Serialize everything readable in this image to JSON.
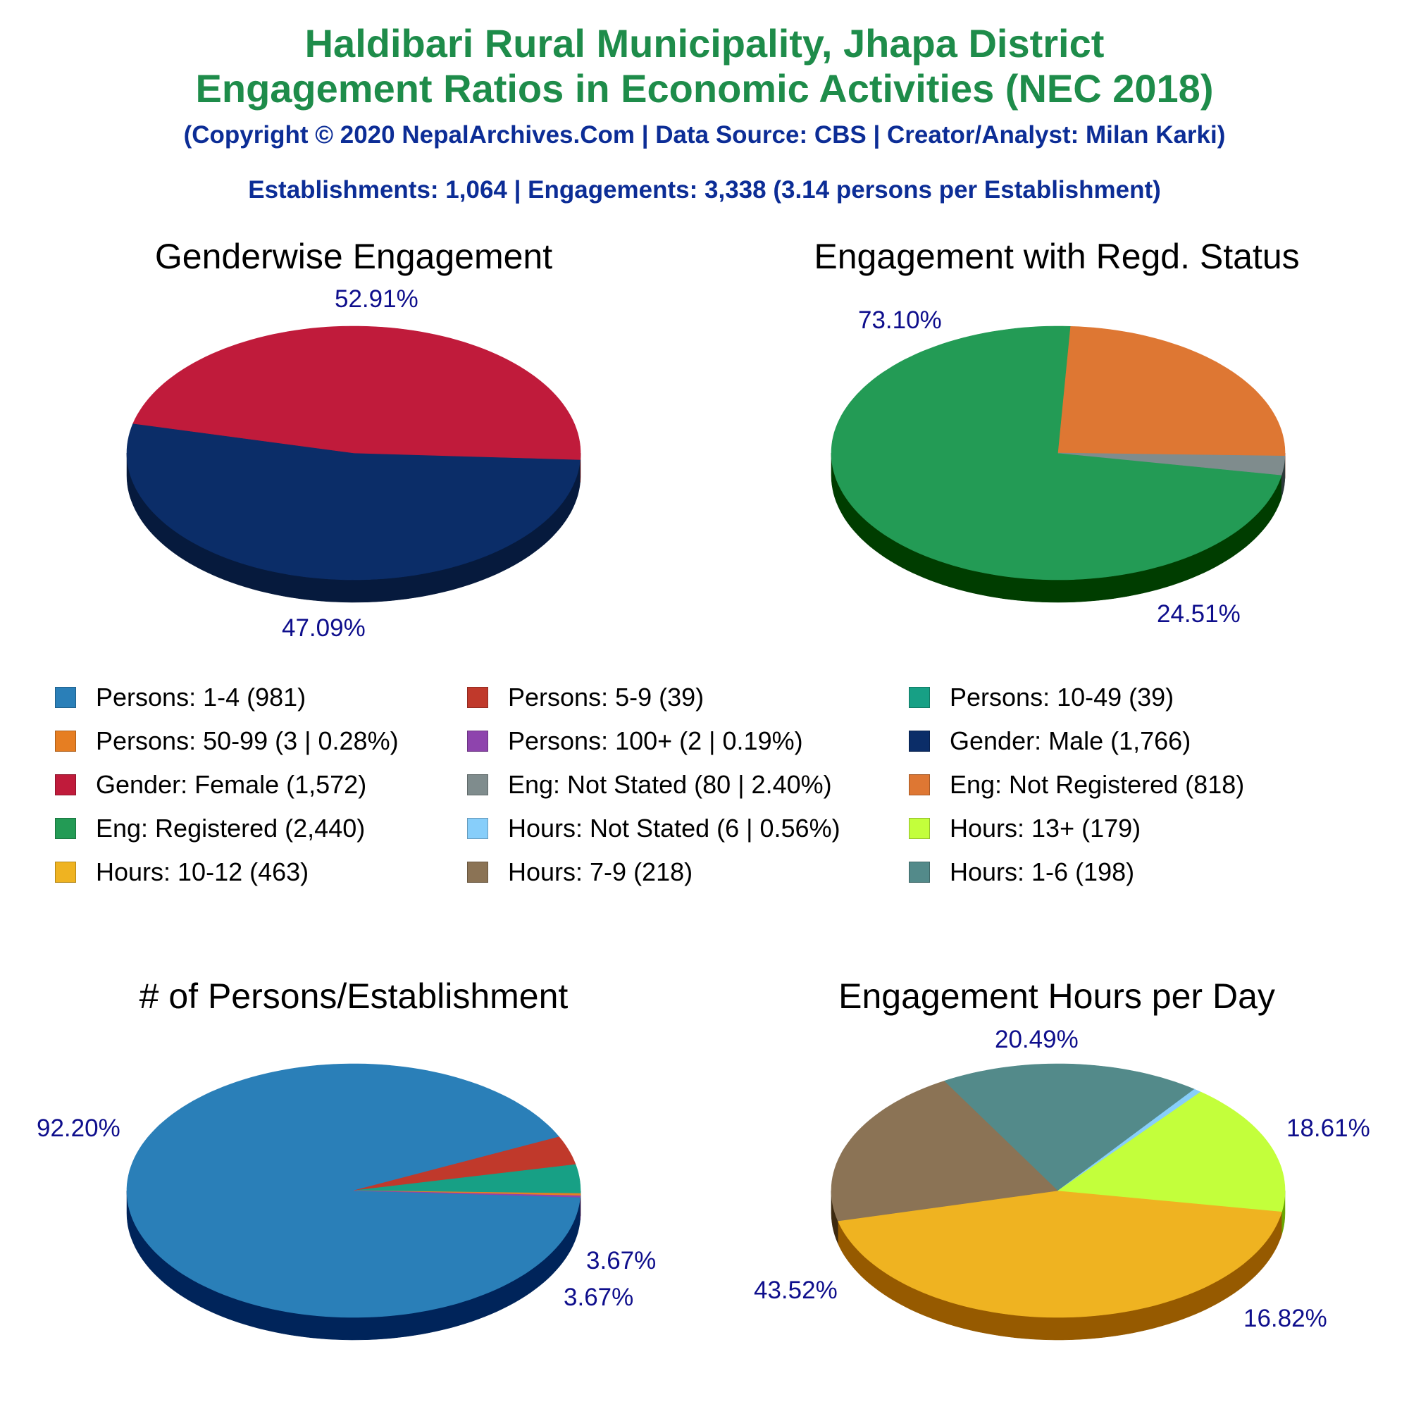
{
  "header": {
    "title_line1": "Haldibari Rural Municipality, Jhapa District",
    "title_line2": "Engagement Ratios in Economic Activities (NEC 2018)",
    "copyright": "(Copyright © 2020 NepalArchives.Com | Data Source: CBS | Creator/Analyst: Milan Karki)",
    "summary": "Establishments: 1,064 | Engagements: 3,338 (3.14 persons per Establishment)"
  },
  "legend": [
    {
      "label": "Persons: 1-4 (981)",
      "color": "#2a7fb8"
    },
    {
      "label": "Persons: 5-9 (39)",
      "color": "#c0392b"
    },
    {
      "label": "Persons: 10-49 (39)",
      "color": "#17a085"
    },
    {
      "label": "Persons: 50-99 (3 | 0.28%)",
      "color": "#e67e22"
    },
    {
      "label": "Persons: 100+ (2 | 0.19%)",
      "color": "#8e44ad"
    },
    {
      "label": "Gender: Male (1,766)",
      "color": "#0b2d68"
    },
    {
      "label": "Gender: Female (1,572)",
      "color": "#c01b3b"
    },
    {
      "label": "Eng: Not Stated (80 | 2.40%)",
      "color": "#7f8c8d"
    },
    {
      "label": "Eng: Not Registered (818)",
      "color": "#de7733"
    },
    {
      "label": "Eng: Registered (2,440)",
      "color": "#239b55"
    },
    {
      "label": "Hours: Not Stated (6 | 0.56%)",
      "color": "#87cefa"
    },
    {
      "label": "Hours: 13+ (179)",
      "color": "#c3ff3b"
    },
    {
      "label": "Hours: 10-12 (463)",
      "color": "#efb321"
    },
    {
      "label": "Hours: 7-9 (218)",
      "color": "#8b7355"
    },
    {
      "label": "Hours: 1-6 (198)",
      "color": "#538a8a"
    }
  ],
  "chart_data": [
    {
      "type": "pie",
      "title": "Genderwise Engagement",
      "slices": [
        {
          "name": "Gender: Male",
          "value": 1766,
          "color": "#0b2d68",
          "side": "#061a3d",
          "label": "52.91%"
        },
        {
          "name": "Gender: Female",
          "value": 1572,
          "color": "#c01b3b",
          "side": "#640000",
          "label": "47.09%"
        }
      ]
    },
    {
      "type": "pie",
      "title": "Engagement with Regd. Status",
      "slices": [
        {
          "name": "Eng: Registered",
          "value": 2440,
          "color": "#239b55",
          "side": "#003d00",
          "label": "73.10%"
        },
        {
          "name": "Eng: Not Registered",
          "value": 818,
          "color": "#de7733",
          "side": "#7a1c00",
          "label": "24.51%"
        },
        {
          "name": "Eng: Not Stated",
          "value": 80,
          "color": "#7f8c8d",
          "side": "#2c3a3a",
          "label": ""
        }
      ]
    },
    {
      "type": "pie",
      "title": "# of Persons/Establishment",
      "slices": [
        {
          "name": "Persons: 1-4",
          "value": 981,
          "color": "#2a7fb8",
          "side": "#00245a",
          "label": "92.20%"
        },
        {
          "name": "Persons: 5-9",
          "value": 39,
          "color": "#c0392b",
          "side": "#640000",
          "label": "3.67%"
        },
        {
          "name": "Persons: 10-49",
          "value": 39,
          "color": "#17a085",
          "side": "#003a2c",
          "label": "3.67%"
        },
        {
          "name": "Persons: 50-99",
          "value": 3,
          "color": "#e67e22",
          "side": "#6d2500",
          "label": ""
        },
        {
          "name": "Persons: 100+",
          "value": 2,
          "color": "#8e44ad",
          "side": "#3a0060",
          "label": ""
        }
      ]
    },
    {
      "type": "pie",
      "title": "Engagement Hours per Day",
      "slices": [
        {
          "name": "Hours: 10-12",
          "value": 463,
          "color": "#efb321",
          "side": "#965a00",
          "label": "43.52%"
        },
        {
          "name": "Hours: 7-9",
          "value": 218,
          "color": "#8b7355",
          "side": "#3d2a10",
          "label": "20.49%"
        },
        {
          "name": "Hours: 1-6",
          "value": 198,
          "color": "#538a8a",
          "side": "#123636",
          "label": "18.61%"
        },
        {
          "name": "Hours: Not Stated",
          "value": 6,
          "color": "#87cefa",
          "side": "#2a6a95",
          "label": ""
        },
        {
          "name": "Hours: 13+",
          "value": 179,
          "color": "#c3ff3b",
          "side": "#69a600",
          "label": "16.82%"
        }
      ]
    }
  ]
}
